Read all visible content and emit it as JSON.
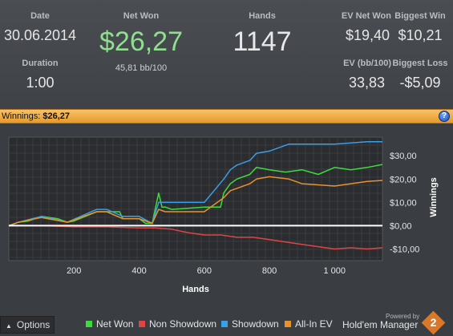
{
  "stats": {
    "date_label": "Date",
    "date_value": "30.06.2014",
    "duration_label": "Duration",
    "duration_value": "1:00",
    "netwon_label": "Net Won",
    "netwon_value": "$26,27",
    "bb_value": "45,81 bb/100",
    "hands_label": "Hands",
    "hands_value": "1147",
    "ev_label": "EV Net Won",
    "ev_value": "$19,40",
    "bigwin_label": "Biggest Win",
    "bigwin_value": "$10,21",
    "evbb_label": "EV (bb/100)",
    "evbb_value": "33,83",
    "bigloss_label": "Biggest Loss",
    "bigloss_value": "-$5,09"
  },
  "winbar": {
    "label": "Winnings:",
    "value": "$26,27",
    "help_icon": "?"
  },
  "bottom": {
    "options_label": "Options",
    "options_icon": "chevron-up-icon",
    "powered_by": "Powered by",
    "brand": "Hold'em Manager",
    "brand_badge": "2"
  },
  "chart_data": {
    "type": "line",
    "xlabel": "Hands",
    "ylabel": "Winnings",
    "xlim": [
      0,
      1147
    ],
    "ylim": [
      -15,
      38
    ],
    "x_ticks": [
      200,
      400,
      600,
      800,
      1000
    ],
    "x_tick_labels": [
      "200",
      "400",
      "600",
      "800",
      "1 000"
    ],
    "y_ticks": [
      30,
      20,
      10,
      0,
      -10
    ],
    "y_tick_labels": [
      "$30,00",
      "$20,00",
      "$10,00",
      "$0,00",
      "-$10,00"
    ],
    "grid": true,
    "legend": "bottom",
    "series": [
      {
        "name": "Net Won",
        "color": "#3ddc3d",
        "x": [
          0,
          30,
          60,
          100,
          150,
          180,
          200,
          270,
          280,
          300,
          340,
          350,
          400,
          420,
          440,
          460,
          470,
          480,
          500,
          600,
          650,
          660,
          680,
          700,
          740,
          760,
          800,
          850,
          900,
          950,
          1000,
          1050,
          1100,
          1147
        ],
        "y": [
          0,
          1.5,
          2,
          4,
          3,
          1.5,
          2,
          6,
          6,
          6,
          6,
          3,
          3,
          1,
          1,
          14,
          8,
          8,
          7,
          8,
          8,
          14,
          18,
          20,
          22,
          25,
          24,
          23,
          24,
          22,
          25,
          24,
          25,
          26.27
        ]
      },
      {
        "name": "Non Showdown",
        "color": "#e04545",
        "x": [
          0,
          100,
          200,
          300,
          400,
          450,
          500,
          550,
          600,
          650,
          700,
          750,
          800,
          850,
          900,
          950,
          1000,
          1050,
          1100,
          1147
        ],
        "y": [
          0,
          0,
          -0.5,
          -0.5,
          -1,
          -1,
          -1.5,
          -3,
          -4,
          -4,
          -5,
          -5,
          -6,
          -7,
          -8,
          -9,
          -10,
          -9.5,
          -10,
          -9.5
        ]
      },
      {
        "name": "Showdown",
        "color": "#3a9ee8",
        "x": [
          0,
          30,
          100,
          180,
          270,
          300,
          350,
          400,
          440,
          460,
          480,
          500,
          600,
          660,
          680,
          700,
          740,
          760,
          800,
          860,
          900,
          1000,
          1100,
          1147
        ],
        "y": [
          0,
          1.5,
          4,
          1.5,
          7,
          7,
          4,
          4,
          1,
          10,
          10,
          10,
          10,
          20,
          24,
          26,
          28,
          31,
          32,
          35,
          35,
          35,
          36,
          36
        ]
      },
      {
        "name": "All-In EV",
        "color": "#e8922e",
        "x": [
          0,
          30,
          100,
          180,
          270,
          300,
          350,
          400,
          440,
          460,
          480,
          500,
          600,
          660,
          680,
          700,
          740,
          760,
          800,
          860,
          900,
          1000,
          1100,
          1147
        ],
        "y": [
          0,
          1.5,
          3.5,
          1.5,
          6,
          6,
          3,
          3,
          1,
          7,
          6,
          6,
          6,
          12,
          15,
          16,
          18,
          20,
          21,
          20,
          18,
          17,
          19,
          19.4
        ]
      }
    ]
  }
}
